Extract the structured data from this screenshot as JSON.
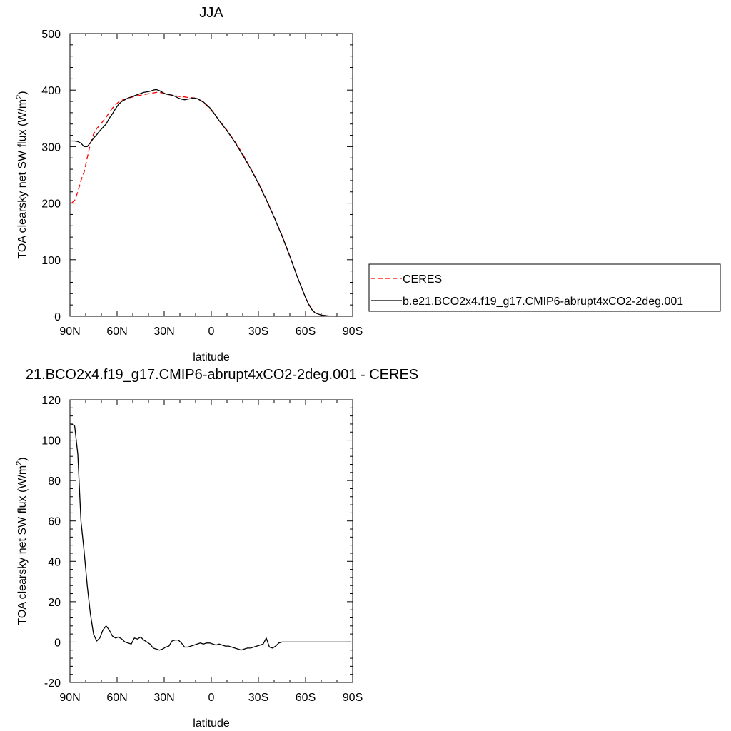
{
  "chart_data": [
    {
      "type": "line",
      "title": "JJA",
      "xlabel": "latitude",
      "ylabel_main": "TOA clearsky net SW flux (W/m",
      "ylabel_sup": "2",
      "ylabel_close": ")",
      "xlim": [
        90,
        -90
      ],
      "ylim": [
        0,
        500
      ],
      "x_ticks": [
        90,
        60,
        30,
        0,
        -30,
        -60,
        -90
      ],
      "x_tick_labels": [
        "90N",
        "60N",
        "30N",
        "0",
        "30S",
        "60S",
        "90S"
      ],
      "y_ticks": [
        0,
        100,
        200,
        300,
        400,
        500
      ],
      "y_tick_labels": [
        "0",
        "100",
        "200",
        "300",
        "400",
        "500"
      ],
      "legend_position": "right",
      "series": [
        {
          "name": "CERES",
          "color": "#ff0000",
          "dash": "dashed",
          "x": [
            89,
            87,
            85,
            83,
            81,
            79,
            77,
            75,
            73,
            71,
            69,
            67,
            65,
            63,
            61,
            59,
            57,
            55,
            53,
            51,
            49,
            47,
            45,
            43,
            41,
            39,
            37,
            35,
            33,
            31,
            29,
            27,
            25,
            23,
            21,
            19,
            17,
            15,
            13,
            11,
            9,
            7,
            5,
            3,
            1,
            -1,
            -3,
            -5,
            -10,
            -15,
            -20,
            -25,
            -30,
            -35,
            -40,
            -45,
            -50,
            -55,
            -60,
            -62,
            -64,
            -66,
            -70,
            -75,
            -80
          ],
          "y": [
            200,
            205,
            220,
            240,
            255,
            280,
            305,
            322,
            332,
            338,
            345,
            352,
            360,
            368,
            374,
            379,
            382,
            384,
            386,
            387,
            389,
            390,
            391,
            392,
            393,
            394,
            395,
            396,
            396,
            395,
            393,
            392,
            391,
            390,
            389,
            388,
            388,
            387,
            387,
            386,
            385,
            382,
            378,
            373,
            367,
            361,
            354,
            347,
            329,
            309,
            287,
            262,
            236,
            207,
            176,
            143,
            107,
            68,
            33,
            22,
            13,
            6,
            2,
            0.5,
            0
          ]
        },
        {
          "name": "b.e21.BCO2x4.f19_g17.CMIP6-abrupt4xCO2-2deg.001",
          "color": "#000000",
          "dash": "solid",
          "x": [
            89,
            87,
            85,
            83,
            81,
            79,
            77,
            75,
            73,
            71,
            69,
            67,
            65,
            63,
            61,
            59,
            57,
            55,
            53,
            51,
            49,
            47,
            45,
            43,
            41,
            39,
            37,
            35,
            33,
            31,
            29,
            27,
            25,
            23,
            21,
            19,
            17,
            15,
            13,
            11,
            9,
            7,
            5,
            3,
            1,
            -1,
            -3,
            -5,
            -10,
            -15,
            -20,
            -25,
            -30,
            -35,
            -40,
            -45,
            -50,
            -55,
            -60,
            -62,
            -64,
            -66,
            -70,
            -75,
            -80
          ],
          "y": [
            310,
            310,
            309,
            306,
            300,
            300,
            307,
            315,
            321,
            328,
            334,
            340,
            350,
            358,
            367,
            375,
            380,
            383,
            386,
            388,
            390,
            392,
            394,
            396,
            397,
            398,
            400,
            401,
            399,
            396,
            393,
            392,
            391,
            389,
            386,
            384,
            383,
            384,
            385,
            386,
            385,
            382,
            379,
            374,
            369,
            362,
            354,
            346,
            328,
            308,
            285,
            261,
            235,
            206,
            175,
            142,
            106,
            68,
            33,
            21,
            12,
            6,
            2,
            0.5,
            0
          ]
        }
      ]
    },
    {
      "type": "line",
      "title": "21.BCO2x4.f19_g17.CMIP6-abrupt4xCO2-2deg.001 - CERES",
      "xlabel": "latitude",
      "ylabel_main": "TOA clearsky net SW flux (W/m",
      "ylabel_sup": "2",
      "ylabel_close": ")",
      "xlim": [
        90,
        -90
      ],
      "ylim": [
        -20,
        120
      ],
      "x_ticks": [
        90,
        60,
        30,
        0,
        -30,
        -60,
        -90
      ],
      "x_tick_labels": [
        "90N",
        "60N",
        "30N",
        "0",
        "30S",
        "60S",
        "90S"
      ],
      "y_ticks": [
        -20,
        0,
        20,
        40,
        60,
        80,
        100,
        120
      ],
      "y_tick_labels": [
        "-20",
        "0",
        "20",
        "40",
        "60",
        "80",
        "100",
        "120"
      ],
      "series": [
        {
          "color": "#000000",
          "dash": "solid",
          "x": [
            89,
            87,
            85,
            83,
            81,
            79,
            77,
            75,
            73,
            71,
            69,
            67,
            65,
            63,
            61,
            59,
            57,
            55,
            53,
            51,
            49,
            47,
            45,
            43,
            41,
            39,
            37,
            35,
            33,
            31,
            29,
            27,
            25,
            23,
            21,
            19,
            17,
            15,
            13,
            11,
            9,
            7,
            5,
            3,
            1,
            -1,
            -3,
            -5,
            -7,
            -9,
            -11,
            -13,
            -15,
            -17,
            -19,
            -21,
            -23,
            -25,
            -27,
            -29,
            -31,
            -33,
            -35,
            -37,
            -39,
            -41,
            -43,
            -45,
            -47,
            -49,
            -51,
            -53,
            -55,
            -57,
            -59,
            -61,
            -63,
            -65,
            -67,
            -69,
            -71,
            -73,
            -75,
            -77,
            -79,
            -81,
            -83,
            -85,
            -87,
            -89
          ],
          "y": [
            108,
            107,
            93,
            60,
            45,
            28,
            14,
            4,
            0.5,
            2,
            6,
            8,
            6,
            3,
            2,
            2.5,
            1.5,
            0,
            -0.5,
            -1,
            2,
            1.5,
            2.5,
            1,
            0,
            -1,
            -3,
            -3.5,
            -4,
            -3.5,
            -2.5,
            -2,
            0.5,
            1,
            1,
            -0.5,
            -2.5,
            -2.5,
            -2,
            -1.5,
            -1,
            -0.5,
            -1,
            -0.5,
            -0.5,
            -1,
            -1.5,
            -1,
            -1.5,
            -2,
            -2,
            -2.5,
            -3,
            -3.5,
            -4,
            -3.5,
            -3,
            -3,
            -2.5,
            -2,
            -1.5,
            -1,
            2,
            -2.5,
            -3,
            -2,
            -0.5,
            0,
            0,
            0,
            0,
            0,
            0,
            0,
            0,
            0,
            0,
            0,
            0,
            0,
            0,
            0,
            0,
            0,
            0,
            0,
            0,
            0,
            0,
            0
          ]
        }
      ]
    }
  ]
}
